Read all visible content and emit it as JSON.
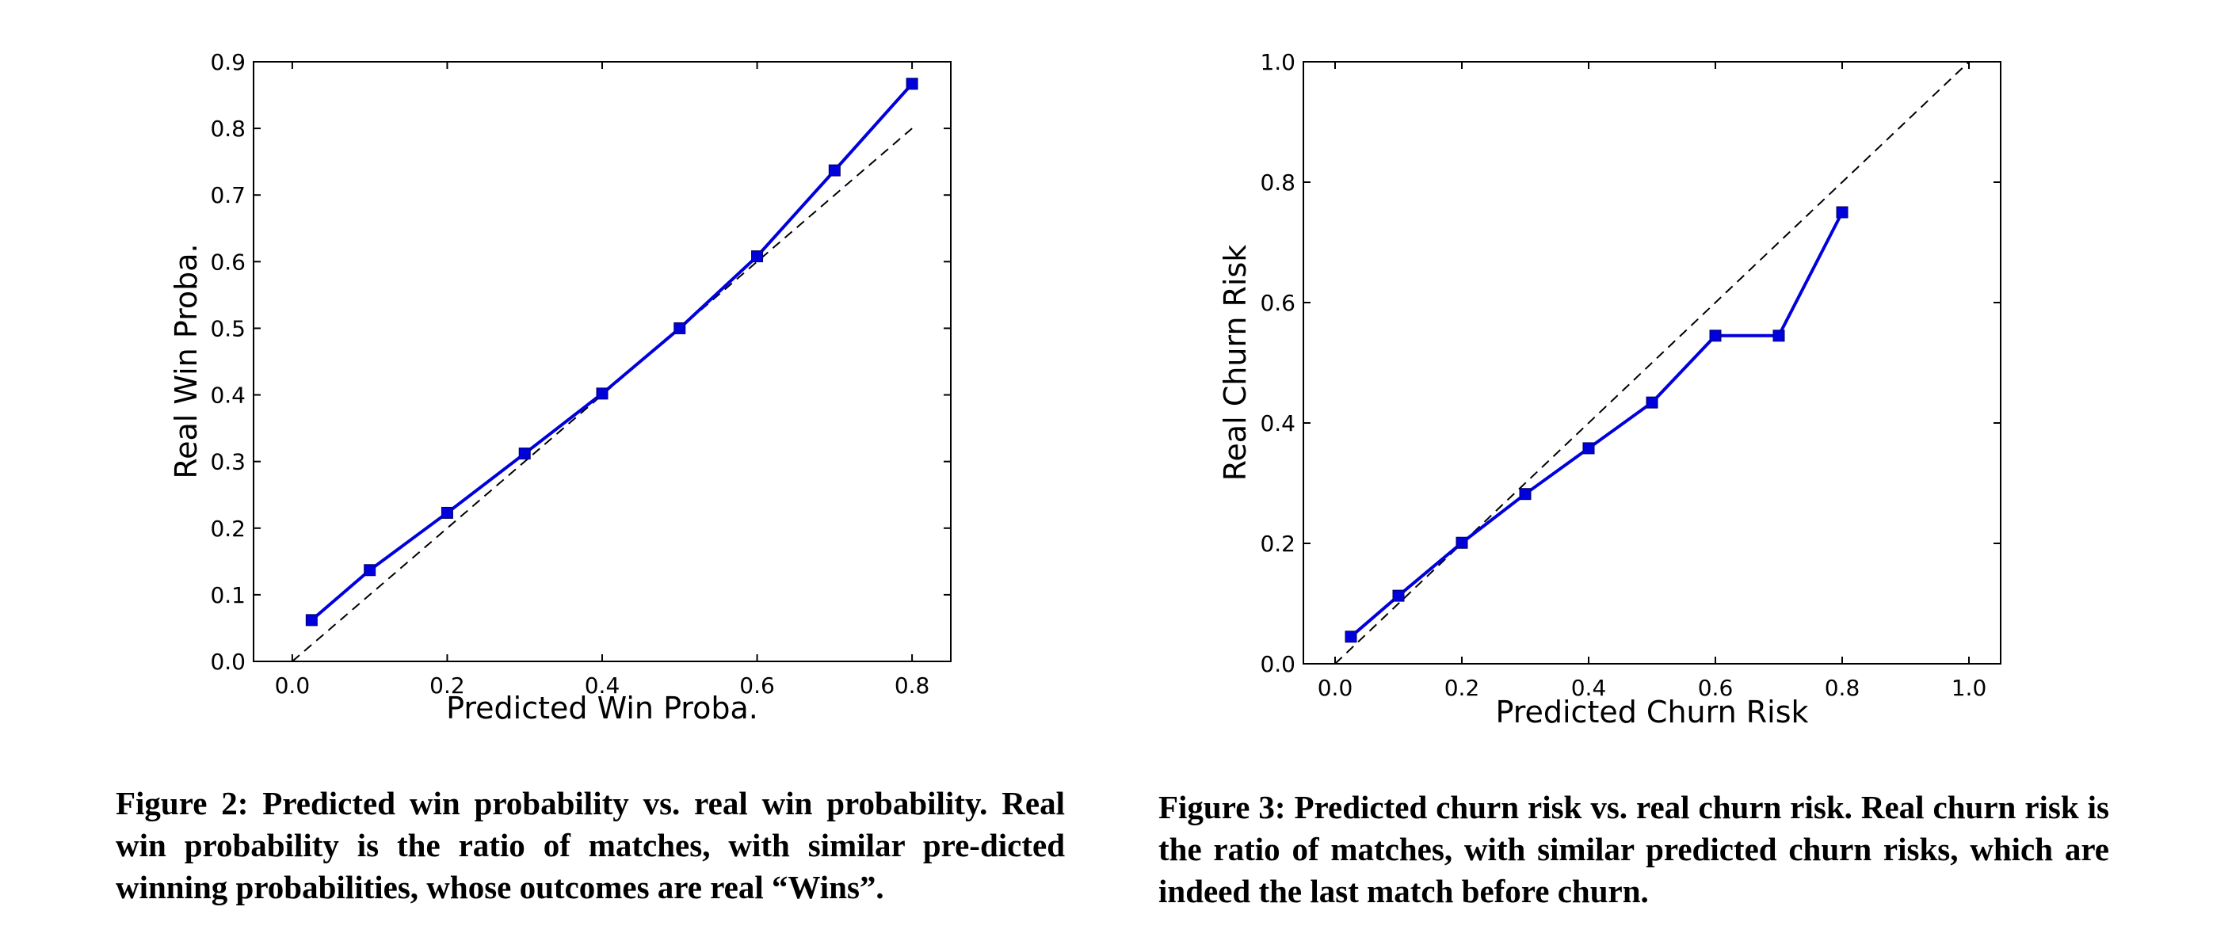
{
  "chart_data": [
    {
      "type": "line",
      "xlabel": "Predicted Win Proba.",
      "ylabel": "Real Win Proba.",
      "xlim": [
        -0.05,
        0.85
      ],
      "ylim": [
        0.0,
        0.9
      ],
      "x_ticks": [
        "0.0",
        "0.2",
        "0.4",
        "0.6",
        "0.8"
      ],
      "y_ticks": [
        "0.0",
        "0.1",
        "0.2",
        "0.3",
        "0.4",
        "0.5",
        "0.6",
        "0.7",
        "0.8",
        "0.9"
      ],
      "grid": false,
      "series": [
        {
          "color": "#0000dd",
          "marker": "square",
          "x": [
            0.025,
            0.1,
            0.2,
            0.3,
            0.4,
            0.5,
            0.6,
            0.7,
            0.8
          ],
          "y": [
            0.062,
            0.137,
            0.223,
            0.312,
            0.402,
            0.5,
            0.608,
            0.737,
            0.867
          ]
        }
      ],
      "reference_line": {
        "style": "dashed",
        "color": "#000000",
        "x": [
          0.0,
          0.8
        ],
        "y": [
          0.0,
          0.8
        ]
      }
    },
    {
      "type": "line",
      "xlabel": "Predicted Churn Risk",
      "ylabel": "Real Churn Risk",
      "xlim": [
        -0.05,
        1.05
      ],
      "ylim": [
        0.0,
        1.0
      ],
      "x_ticks": [
        "0.0",
        "0.2",
        "0.4",
        "0.6",
        "0.8",
        "1.0"
      ],
      "y_ticks": [
        "0.0",
        "0.2",
        "0.4",
        "0.6",
        "0.8",
        "1.0"
      ],
      "grid": false,
      "series": [
        {
          "color": "#0000dd",
          "marker": "square",
          "x": [
            0.025,
            0.1,
            0.2,
            0.3,
            0.4,
            0.5,
            0.6,
            0.7,
            0.8
          ],
          "y": [
            0.045,
            0.113,
            0.201,
            0.282,
            0.358,
            0.434,
            0.545,
            0.545,
            0.75
          ]
        }
      ],
      "reference_line": {
        "style": "dashed",
        "color": "#000000",
        "x": [
          0.0,
          1.0
        ],
        "y": [
          0.0,
          1.0
        ]
      }
    }
  ],
  "captions": {
    "left": "Figure 2: Predicted win probability vs. real win probability. Real win probability is the ratio of matches, with similar pre-dicted winning probabilities, whose outcomes are real “Wins”.",
    "right": "Figure 3: Predicted churn risk vs. real churn risk. Real churn risk is the ratio of matches, with similar predicted churn risks, which are indeed the last match before churn."
  }
}
